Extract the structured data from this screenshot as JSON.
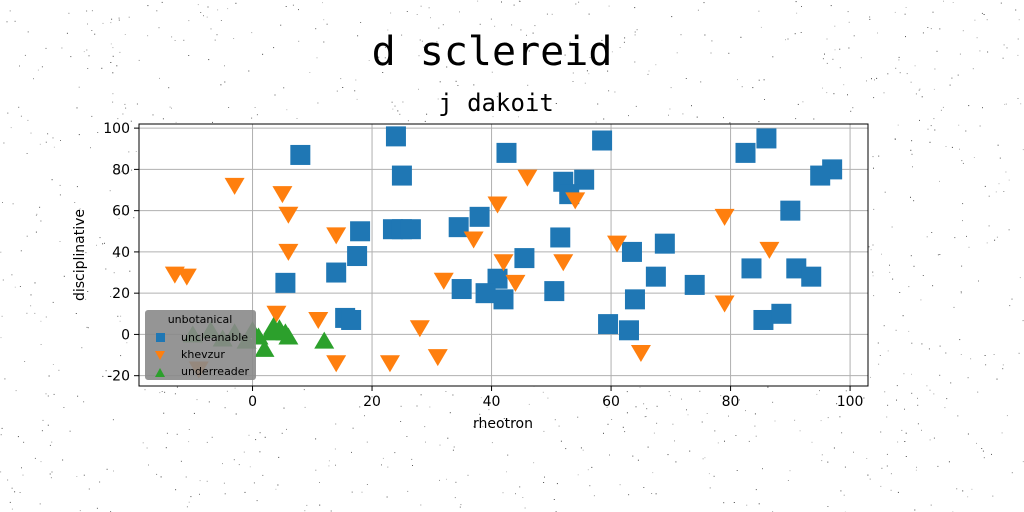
{
  "chart_data": {
    "type": "scatter",
    "title": "d sclereid",
    "subtitle": "j dakoit",
    "xlabel": "rheotron",
    "ylabel": "disciplinative",
    "xlim": [
      -19,
      103
    ],
    "ylim": [
      -25,
      102
    ],
    "xticks": [
      0,
      20,
      40,
      60,
      80,
      100
    ],
    "yticks": [
      -20,
      0,
      20,
      40,
      60,
      80,
      100
    ],
    "grid": true,
    "legend": {
      "title": "unbotanical",
      "placement": "lower-left"
    },
    "series": [
      {
        "name": "uncleanable",
        "marker": "square",
        "color": "#1f77b4",
        "points": [
          [
            8,
            87
          ],
          [
            24,
            96
          ],
          [
            25,
            77
          ],
          [
            42.5,
            88
          ],
          [
            58.5,
            94
          ],
          [
            86,
            95
          ],
          [
            82.5,
            88
          ],
          [
            97,
            80
          ],
          [
            95,
            77
          ],
          [
            90,
            60
          ],
          [
            52,
            74
          ],
          [
            55.5,
            75
          ],
          [
            53,
            68
          ],
          [
            38,
            57
          ],
          [
            34.5,
            52
          ],
          [
            18,
            50
          ],
          [
            23.5,
            51
          ],
          [
            25,
            51
          ],
          [
            26.5,
            51
          ],
          [
            51.5,
            47
          ],
          [
            17.5,
            38
          ],
          [
            45.5,
            37
          ],
          [
            63.5,
            40
          ],
          [
            69,
            44
          ],
          [
            14,
            30
          ],
          [
            41,
            27
          ],
          [
            5.5,
            25
          ],
          [
            35,
            22
          ],
          [
            39,
            20
          ],
          [
            42,
            17
          ],
          [
            50.5,
            21
          ],
          [
            64,
            17
          ],
          [
            67.5,
            28
          ],
          [
            74,
            24
          ],
          [
            83.5,
            32
          ],
          [
            91,
            32
          ],
          [
            93.5,
            28
          ],
          [
            15.5,
            8
          ],
          [
            16.5,
            7
          ],
          [
            59.5,
            5
          ],
          [
            63,
            2
          ],
          [
            85.5,
            7
          ],
          [
            88.5,
            10
          ]
        ]
      },
      {
        "name": "khevzur",
        "marker": "triangle-down",
        "color": "#ff7f0e",
        "points": [
          [
            -3,
            72
          ],
          [
            5,
            68
          ],
          [
            6,
            58
          ],
          [
            6,
            40
          ],
          [
            4,
            10
          ],
          [
            -13,
            29
          ],
          [
            -11,
            28
          ],
          [
            14,
            48
          ],
          [
            11,
            7
          ],
          [
            14,
            -14
          ],
          [
            23,
            -14
          ],
          [
            28,
            3
          ],
          [
            31,
            -11
          ],
          [
            32,
            26
          ],
          [
            37,
            46
          ],
          [
            41,
            63
          ],
          [
            42,
            35
          ],
          [
            44,
            25
          ],
          [
            46,
            76
          ],
          [
            52,
            35
          ],
          [
            54,
            65
          ],
          [
            61,
            44
          ],
          [
            65,
            -9
          ],
          [
            79,
            57
          ],
          [
            79,
            15
          ],
          [
            86.5,
            41
          ],
          [
            -9,
            -17
          ]
        ]
      },
      {
        "name": "underreader",
        "marker": "triangle-up",
        "color": "#2ca02c",
        "points": [
          [
            -10,
            0
          ],
          [
            -7,
            2
          ],
          [
            -5,
            -2
          ],
          [
            -3,
            1
          ],
          [
            -1,
            -3
          ],
          [
            0,
            2
          ],
          [
            1,
            -1
          ],
          [
            2,
            -7
          ],
          [
            3,
            1
          ],
          [
            3.5,
            4
          ],
          [
            4.5,
            3
          ],
          [
            5.5,
            1
          ],
          [
            6,
            -1
          ],
          [
            12,
            -3
          ]
        ]
      }
    ]
  }
}
